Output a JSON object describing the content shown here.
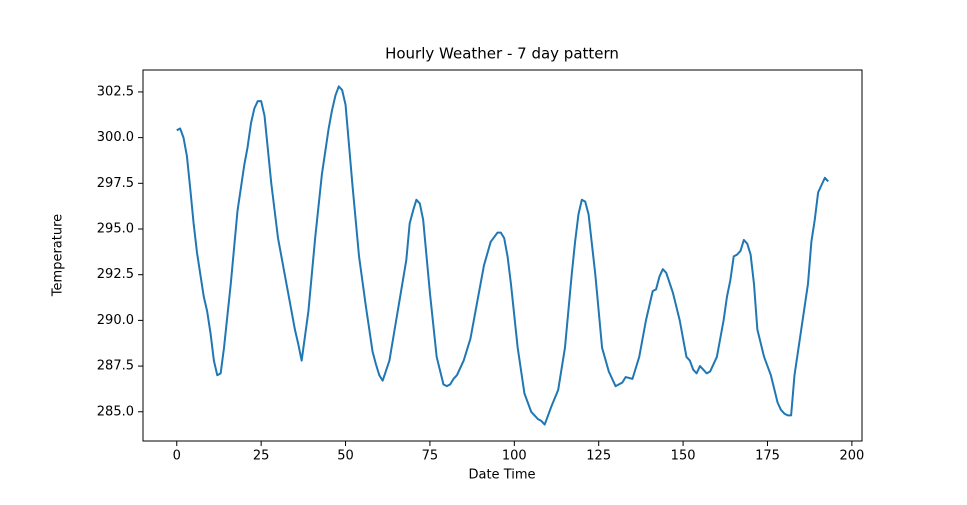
{
  "chart_data": {
    "type": "line",
    "title": "Hourly Weather - 7 day pattern",
    "x_label": "Date Time",
    "y_label": "Temperature",
    "x": [
      0,
      1,
      2,
      3,
      4,
      5,
      6,
      7,
      8,
      9,
      10,
      11,
      12,
      13,
      14,
      16,
      18,
      20,
      21,
      22,
      23,
      24,
      25,
      26,
      28,
      30,
      32,
      34,
      35,
      36,
      37,
      39,
      41,
      43,
      45,
      46,
      47,
      48,
      49,
      50,
      52,
      54,
      56,
      58,
      59,
      60,
      61,
      63,
      65,
      67,
      68,
      69,
      70,
      71,
      72,
      73,
      75,
      77,
      79,
      80,
      81,
      82,
      83,
      85,
      87,
      89,
      91,
      93,
      95,
      96,
      97,
      98,
      99,
      101,
      103,
      105,
      106,
      107,
      108,
      109,
      110,
      111,
      113,
      115,
      117,
      118,
      119,
      120,
      121,
      122,
      124,
      126,
      128,
      129,
      130,
      131,
      132,
      133,
      135,
      137,
      139,
      140,
      141,
      142,
      143,
      144,
      145,
      147,
      149,
      150,
      151,
      152,
      153,
      154,
      155,
      156,
      157,
      158,
      160,
      162,
      163,
      164,
      165,
      166,
      167,
      168,
      169,
      170,
      171,
      172,
      174,
      176,
      178,
      179,
      180,
      181,
      182,
      183,
      185,
      187,
      188,
      189,
      190,
      191,
      192,
      193
    ],
    "series": [
      {
        "name": "Temperature",
        "color": "#1f77b4",
        "values": [
          300.4,
          300.5,
          300.0,
          299.0,
          297.2,
          295.3,
          293.7,
          292.5,
          291.3,
          290.5,
          289.3,
          287.8,
          287.0,
          287.1,
          288.5,
          292.0,
          296.0,
          298.5,
          299.5,
          300.8,
          301.6,
          302.0,
          302.0,
          301.2,
          297.5,
          294.5,
          292.5,
          290.5,
          289.5,
          288.7,
          287.8,
          290.5,
          294.5,
          298.0,
          300.5,
          301.5,
          302.3,
          302.8,
          302.6,
          301.8,
          297.5,
          293.5,
          290.8,
          288.3,
          287.6,
          287.0,
          286.7,
          287.8,
          290.0,
          292.2,
          293.3,
          295.3,
          296.0,
          296.6,
          296.4,
          295.5,
          291.5,
          288.0,
          286.5,
          286.4,
          286.5,
          286.8,
          287.0,
          287.8,
          289.0,
          291.0,
          293.0,
          294.3,
          294.8,
          294.8,
          294.5,
          293.5,
          292.0,
          288.5,
          286.0,
          285.0,
          284.8,
          284.6,
          284.5,
          284.3,
          284.8,
          285.3,
          286.2,
          288.5,
          292.5,
          294.3,
          295.8,
          296.6,
          296.5,
          295.8,
          292.5,
          288.5,
          287.2,
          286.8,
          286.4,
          286.5,
          286.6,
          286.9,
          286.8,
          288.0,
          290.0,
          290.8,
          291.6,
          291.7,
          292.4,
          292.8,
          292.6,
          291.5,
          290.0,
          289.0,
          288.0,
          287.8,
          287.3,
          287.1,
          287.5,
          287.3,
          287.1,
          287.2,
          288.0,
          290.0,
          291.3,
          292.2,
          293.5,
          293.6,
          293.8,
          294.4,
          294.2,
          293.6,
          292.0,
          289.5,
          288.0,
          287.0,
          285.5,
          285.1,
          284.9,
          284.8,
          284.8,
          287.0,
          289.5,
          292.0,
          294.3,
          295.5,
          297.0,
          297.4,
          297.8,
          297.6
        ]
      }
    ],
    "xlim": [
      -10,
      203
    ],
    "ylim": [
      283.4,
      303.7
    ],
    "xticks": [
      0,
      25,
      50,
      75,
      100,
      125,
      150,
      175,
      200
    ],
    "yticks": [
      {
        "value": 285,
        "label": "285.0"
      },
      287.5,
      {
        "value": 290,
        "label": "290.0"
      },
      292.5,
      {
        "value": 295,
        "label": "295.0"
      },
      297.5,
      {
        "value": 300,
        "label": "300.0"
      },
      302.5
    ],
    "grid": false
  }
}
